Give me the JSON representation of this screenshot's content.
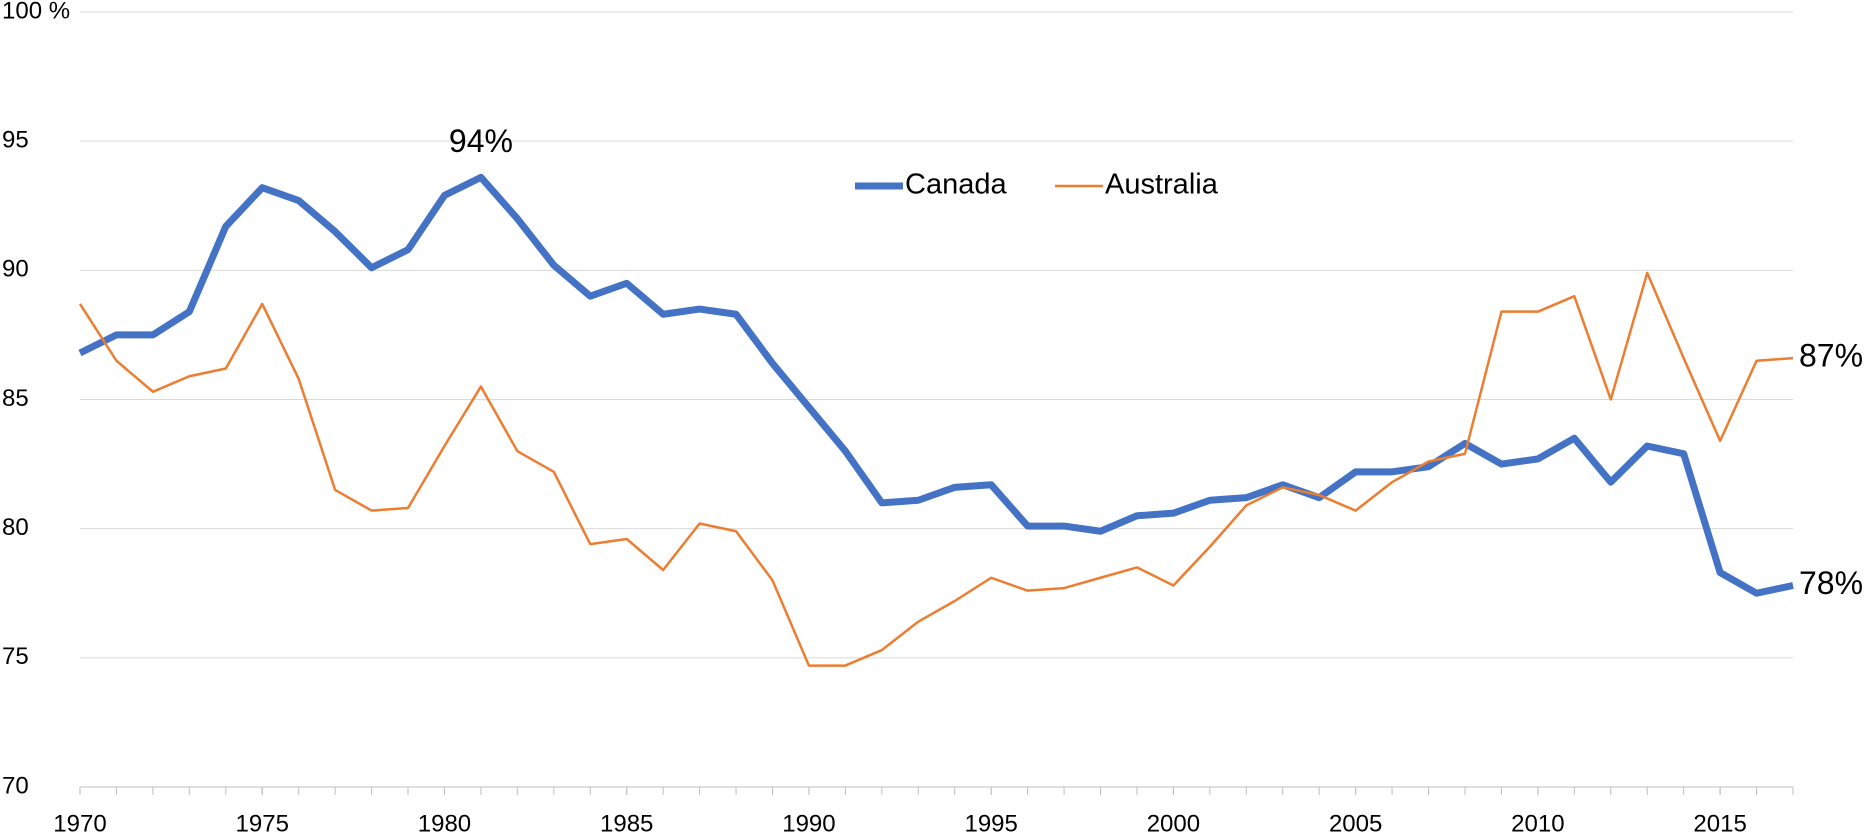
{
  "chart_data": {
    "type": "line",
    "x": [
      1970,
      1971,
      1972,
      1973,
      1974,
      1975,
      1976,
      1977,
      1978,
      1979,
      1980,
      1981,
      1982,
      1983,
      1984,
      1985,
      1986,
      1987,
      1988,
      1989,
      1990,
      1991,
      1992,
      1993,
      1994,
      1995,
      1996,
      1997,
      1998,
      1999,
      2000,
      2001,
      2002,
      2003,
      2004,
      2005,
      2006,
      2007,
      2008,
      2009,
      2010,
      2011,
      2012,
      2013,
      2014,
      2015,
      2016,
      2017
    ],
    "series": [
      {
        "name": "Canada",
        "color": "#4472c4",
        "values": [
          86.8,
          87.5,
          87.5,
          88.4,
          91.7,
          93.2,
          92.7,
          91.5,
          90.1,
          90.8,
          92.9,
          93.6,
          92.0,
          90.2,
          89.0,
          89.5,
          88.3,
          88.5,
          88.3,
          86.4,
          84.7,
          83.0,
          81.0,
          81.1,
          81.6,
          81.7,
          80.1,
          80.1,
          79.9,
          80.5,
          80.6,
          81.1,
          81.2,
          81.7,
          81.2,
          82.2,
          82.2,
          82.4,
          83.3,
          82.5,
          82.7,
          83.5,
          81.8,
          83.2,
          82.9,
          78.3,
          77.5,
          77.8
        ],
        "value_labels": [
          null,
          null,
          null,
          null,
          null,
          null,
          null,
          null,
          null,
          null,
          null,
          "94%",
          null,
          null,
          null,
          null,
          null,
          null,
          null,
          null,
          null,
          null,
          null,
          null,
          null,
          null,
          null,
          null,
          null,
          null,
          null,
          null,
          null,
          null,
          null,
          null,
          null,
          null,
          null,
          null,
          null,
          null,
          null,
          null,
          null,
          null,
          null,
          "78%"
        ]
      },
      {
        "name": "Australia",
        "color": "#ed7d31",
        "values": [
          88.7,
          86.5,
          85.3,
          85.9,
          86.2,
          88.7,
          85.8,
          81.5,
          80.7,
          80.8,
          83.2,
          85.5,
          83.0,
          82.2,
          79.4,
          79.6,
          78.4,
          80.2,
          79.9,
          78.0,
          74.7,
          74.7,
          75.3,
          76.4,
          77.2,
          78.1,
          77.6,
          77.7,
          78.1,
          78.5,
          77.8,
          79.3,
          80.9,
          81.6,
          81.3,
          80.7,
          81.8,
          82.6,
          82.9,
          88.4,
          88.4,
          89.0,
          85.0,
          89.9,
          86.6,
          83.4,
          86.5,
          86.6
        ],
        "value_labels": [
          null,
          null,
          null,
          null,
          null,
          null,
          null,
          null,
          null,
          null,
          null,
          null,
          null,
          null,
          null,
          null,
          null,
          null,
          null,
          null,
          null,
          null,
          null,
          null,
          null,
          null,
          null,
          null,
          null,
          null,
          null,
          null,
          null,
          null,
          null,
          null,
          null,
          null,
          null,
          null,
          null,
          null,
          null,
          null,
          null,
          null,
          null,
          "87%"
        ]
      }
    ],
    "xlim": [
      1970,
      2017
    ],
    "xticks": [
      1970,
      1975,
      1980,
      1985,
      1990,
      1995,
      2000,
      2005,
      2010,
      2015
    ],
    "ylim": [
      70,
      100
    ],
    "yticks": [
      70,
      75,
      80,
      85,
      90,
      95,
      {
        "value": 100,
        "label": "100 %"
      }
    ],
    "grid": true
  }
}
